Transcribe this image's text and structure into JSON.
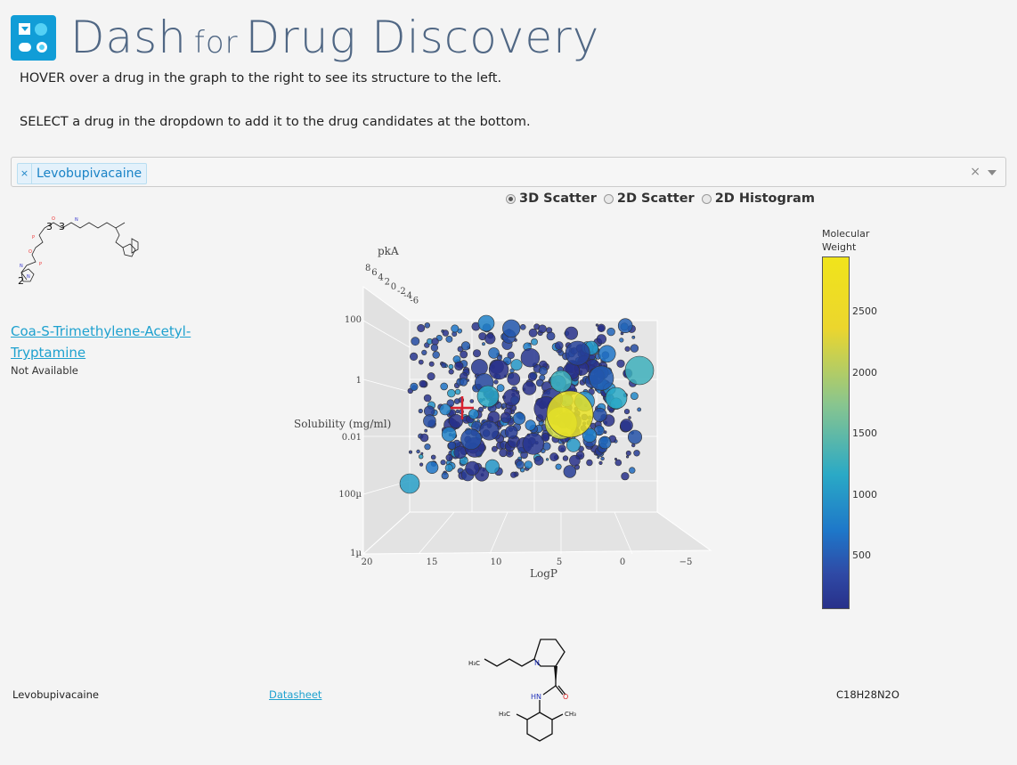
{
  "header": {
    "title_part1": "Dash",
    "title_part2": "for",
    "title_part3": "Drug Discovery"
  },
  "instructions": {
    "hover": "HOVER over a drug in the graph to the right to see its structure to the left.",
    "select": "SELECT a drug in the dropdown to add it to the drug candidates at the bottom."
  },
  "dropdown": {
    "selected": [
      "Levobupivacaine"
    ],
    "chip_remove": "×",
    "clear": "×"
  },
  "plot_type": {
    "options": [
      "3D Scatter",
      "2D Scatter",
      "2D Histogram"
    ],
    "selected": "3D Scatter"
  },
  "hover_panel": {
    "drug_name": "Coa-S-Trimethylene-Acetyl-Tryptamine",
    "description": "Not Available",
    "structure_labels": [
      "3",
      "3",
      "2"
    ]
  },
  "chart_data": {
    "type": "scatter",
    "title": "",
    "xlabel": "LogP",
    "ylabel": "Solubility (mg/ml)",
    "zlabel": "pkA",
    "x_ticks": [
      "20",
      "15",
      "10",
      "5",
      "0",
      "−5"
    ],
    "y_ticks": [
      "100",
      "1",
      "0.01",
      "100µ",
      "1µ"
    ],
    "z_ticks": [
      "8",
      "6",
      "4",
      "2",
      "0",
      "-2",
      "-4",
      "-6"
    ],
    "y_scale": "log",
    "colorbar": {
      "title_line1": "Molecular",
      "title_line2": "Weight",
      "ticks": [
        "2500",
        "2000",
        "1500",
        "1000",
        "500"
      ],
      "colors": [
        "#28308a",
        "#1e77c9",
        "#2aa9c6",
        "#88c58f",
        "#f0e41b"
      ]
    },
    "highlight_marker": "cross",
    "highlight_color": "#d9212e"
  },
  "candidates": {
    "rows": [
      {
        "name": "Levobupivacaine",
        "link": "Datasheet",
        "formula": "C18H28N2O",
        "structure_labels": [
          "H₃C",
          "N",
          "HN",
          "O",
          "H₃C",
          "CH₃"
        ]
      }
    ]
  }
}
